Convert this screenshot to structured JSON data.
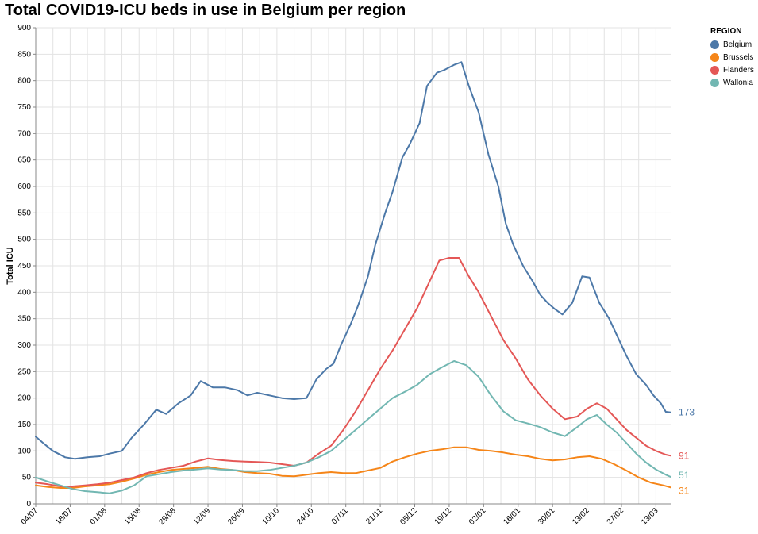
{
  "chart_data": {
    "type": "line",
    "title": "Total COVID19-ICU beds in use in Belgium per region",
    "ylabel": "Total ICU",
    "xlabel": "",
    "ylim": [
      0,
      900
    ],
    "yticks": [
      0,
      50,
      100,
      150,
      200,
      250,
      300,
      350,
      400,
      450,
      500,
      550,
      600,
      650,
      700,
      750,
      800,
      850,
      900
    ],
    "xticks": [
      "04/07",
      "18/07",
      "01/08",
      "15/08",
      "29/08",
      "12/09",
      "26/09",
      "10/10",
      "24/10",
      "07/11",
      "21/11",
      "05/12",
      "19/12",
      "02/01",
      "16/01",
      "30/01",
      "13/02",
      "27/02",
      "13/03"
    ],
    "grid": true,
    "legend": {
      "title": "REGION",
      "position": "top-right"
    },
    "series": [
      {
        "name": "Belgium",
        "color": "#4c78a8",
        "last_label": "173",
        "points": [
          [
            0,
            127
          ],
          [
            3,
            115
          ],
          [
            7,
            100
          ],
          [
            12,
            88
          ],
          [
            16,
            85
          ],
          [
            21,
            88
          ],
          [
            26,
            90
          ],
          [
            30,
            95
          ],
          [
            35,
            100
          ],
          [
            39,
            125
          ],
          [
            44,
            150
          ],
          [
            49,
            178
          ],
          [
            53,
            170
          ],
          [
            58,
            190
          ],
          [
            63,
            205
          ],
          [
            67,
            232
          ],
          [
            72,
            220
          ],
          [
            77,
            220
          ],
          [
            82,
            215
          ],
          [
            86,
            205
          ],
          [
            90,
            210
          ],
          [
            95,
            205
          ],
          [
            100,
            200
          ],
          [
            105,
            198
          ],
          [
            110,
            200
          ],
          [
            114,
            235
          ],
          [
            118,
            255
          ],
          [
            121,
            265
          ],
          [
            124,
            300
          ],
          [
            128,
            340
          ],
          [
            131,
            375
          ],
          [
            135,
            430
          ],
          [
            138,
            490
          ],
          [
            142,
            550
          ],
          [
            145,
            590
          ],
          [
            149,
            655
          ],
          [
            152,
            680
          ],
          [
            156,
            720
          ],
          [
            159,
            790
          ],
          [
            163,
            815
          ],
          [
            166,
            820
          ],
          [
            170,
            830
          ],
          [
            173,
            835
          ],
          [
            176,
            790
          ],
          [
            180,
            740
          ],
          [
            184,
            660
          ],
          [
            188,
            600
          ],
          [
            191,
            530
          ],
          [
            194,
            490
          ],
          [
            198,
            450
          ],
          [
            202,
            420
          ],
          [
            205,
            395
          ],
          [
            208,
            380
          ],
          [
            211,
            368
          ],
          [
            214,
            358
          ],
          [
            218,
            380
          ],
          [
            222,
            430
          ],
          [
            225,
            428
          ],
          [
            229,
            380
          ],
          [
            233,
            350
          ],
          [
            236,
            320
          ],
          [
            240,
            280
          ],
          [
            244,
            245
          ],
          [
            248,
            225
          ],
          [
            251,
            205
          ],
          [
            254,
            190
          ],
          [
            256,
            174
          ],
          [
            258,
            173
          ]
        ]
      },
      {
        "name": "Brussels",
        "color": "#f58518",
        "last_label": "31",
        "points": [
          [
            0,
            35
          ],
          [
            5,
            32
          ],
          [
            10,
            30
          ],
          [
            15,
            30
          ],
          [
            20,
            33
          ],
          [
            25,
            35
          ],
          [
            30,
            37
          ],
          [
            35,
            42
          ],
          [
            40,
            48
          ],
          [
            45,
            55
          ],
          [
            50,
            60
          ],
          [
            55,
            64
          ],
          [
            60,
            66
          ],
          [
            65,
            68
          ],
          [
            70,
            70
          ],
          [
            75,
            66
          ],
          [
            80,
            64
          ],
          [
            85,
            60
          ],
          [
            90,
            58
          ],
          [
            95,
            57
          ],
          [
            100,
            53
          ],
          [
            105,
            52
          ],
          [
            110,
            55
          ],
          [
            115,
            58
          ],
          [
            120,
            60
          ],
          [
            125,
            58
          ],
          [
            130,
            58
          ],
          [
            135,
            63
          ],
          [
            140,
            68
          ],
          [
            145,
            80
          ],
          [
            150,
            88
          ],
          [
            155,
            95
          ],
          [
            160,
            100
          ],
          [
            165,
            103
          ],
          [
            170,
            107
          ],
          [
            175,
            107
          ],
          [
            180,
            102
          ],
          [
            185,
            100
          ],
          [
            190,
            97
          ],
          [
            195,
            93
          ],
          [
            200,
            90
          ],
          [
            205,
            85
          ],
          [
            210,
            82
          ],
          [
            215,
            84
          ],
          [
            220,
            88
          ],
          [
            225,
            90
          ],
          [
            230,
            85
          ],
          [
            235,
            75
          ],
          [
            240,
            63
          ],
          [
            245,
            50
          ],
          [
            250,
            40
          ],
          [
            255,
            35
          ],
          [
            258,
            31
          ]
        ]
      },
      {
        "name": "Flanders",
        "color": "#e45756",
        "last_label": "91",
        "points": [
          [
            0,
            40
          ],
          [
            5,
            37
          ],
          [
            10,
            33
          ],
          [
            15,
            33
          ],
          [
            20,
            35
          ],
          [
            25,
            37
          ],
          [
            30,
            40
          ],
          [
            35,
            45
          ],
          [
            40,
            50
          ],
          [
            45,
            58
          ],
          [
            50,
            64
          ],
          [
            55,
            68
          ],
          [
            60,
            72
          ],
          [
            65,
            80
          ],
          [
            70,
            86
          ],
          [
            75,
            83
          ],
          [
            80,
            81
          ],
          [
            85,
            80
          ],
          [
            90,
            79
          ],
          [
            95,
            78
          ],
          [
            100,
            75
          ],
          [
            105,
            72
          ],
          [
            110,
            78
          ],
          [
            115,
            95
          ],
          [
            120,
            110
          ],
          [
            125,
            140
          ],
          [
            130,
            175
          ],
          [
            135,
            215
          ],
          [
            140,
            255
          ],
          [
            145,
            290
          ],
          [
            150,
            330
          ],
          [
            155,
            370
          ],
          [
            160,
            420
          ],
          [
            164,
            460
          ],
          [
            168,
            465
          ],
          [
            172,
            465
          ],
          [
            176,
            430
          ],
          [
            180,
            400
          ],
          [
            185,
            355
          ],
          [
            190,
            310
          ],
          [
            195,
            275
          ],
          [
            200,
            235
          ],
          [
            205,
            205
          ],
          [
            210,
            180
          ],
          [
            215,
            160
          ],
          [
            220,
            165
          ],
          [
            224,
            180
          ],
          [
            228,
            190
          ],
          [
            232,
            180
          ],
          [
            236,
            160
          ],
          [
            240,
            140
          ],
          [
            244,
            125
          ],
          [
            248,
            110
          ],
          [
            252,
            100
          ],
          [
            256,
            93
          ],
          [
            258,
            91
          ]
        ]
      },
      {
        "name": "Wallonia",
        "color": "#72b7b2",
        "last_label": "51",
        "points": [
          [
            0,
            50
          ],
          [
            5,
            42
          ],
          [
            10,
            35
          ],
          [
            15,
            28
          ],
          [
            20,
            24
          ],
          [
            25,
            22
          ],
          [
            30,
            20
          ],
          [
            35,
            25
          ],
          [
            40,
            35
          ],
          [
            45,
            52
          ],
          [
            50,
            56
          ],
          [
            55,
            60
          ],
          [
            60,
            63
          ],
          [
            65,
            65
          ],
          [
            70,
            67
          ],
          [
            75,
            65
          ],
          [
            80,
            64
          ],
          [
            85,
            62
          ],
          [
            90,
            62
          ],
          [
            95,
            64
          ],
          [
            100,
            68
          ],
          [
            105,
            72
          ],
          [
            110,
            78
          ],
          [
            115,
            88
          ],
          [
            120,
            100
          ],
          [
            125,
            120
          ],
          [
            130,
            140
          ],
          [
            135,
            160
          ],
          [
            140,
            180
          ],
          [
            145,
            200
          ],
          [
            150,
            212
          ],
          [
            155,
            225
          ],
          [
            160,
            245
          ],
          [
            165,
            258
          ],
          [
            170,
            270
          ],
          [
            175,
            262
          ],
          [
            180,
            240
          ],
          [
            185,
            205
          ],
          [
            190,
            175
          ],
          [
            195,
            158
          ],
          [
            200,
            152
          ],
          [
            205,
            145
          ],
          [
            210,
            135
          ],
          [
            215,
            128
          ],
          [
            220,
            145
          ],
          [
            224,
            160
          ],
          [
            228,
            168
          ],
          [
            232,
            150
          ],
          [
            236,
            135
          ],
          [
            240,
            115
          ],
          [
            244,
            95
          ],
          [
            248,
            78
          ],
          [
            252,
            65
          ],
          [
            256,
            55
          ],
          [
            258,
            51
          ]
        ]
      }
    ]
  }
}
